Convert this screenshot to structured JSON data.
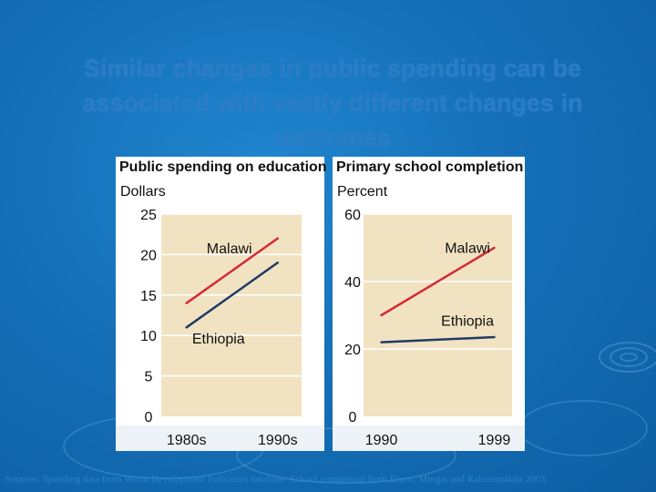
{
  "slide": {
    "title": "Similar changes in public spending can be associated with vastly different changes in outcomes",
    "source": "Sources: Spending data from World Development Indicators database. School completion from Bruns, Mingat and Rakotomalala 2003"
  },
  "colors": {
    "malawi": "#d42a35",
    "ethiopia": "#1f3a66",
    "plot_bg": "#f1e3c2",
    "grid": "#ffffff"
  },
  "chart_data": [
    {
      "type": "line",
      "title": "Public spending on education",
      "ylabel": "Dollars",
      "categories": [
        "1980s",
        "1990s"
      ],
      "ylim": [
        0,
        25
      ],
      "yticks": [
        "0",
        "5",
        "10",
        "15",
        "20",
        "25"
      ],
      "grid": true,
      "series": [
        {
          "name": "Malawi",
          "values": [
            14,
            22
          ]
        },
        {
          "name": "Ethiopia",
          "values": [
            11,
            19
          ]
        }
      ]
    },
    {
      "type": "line",
      "title": "Primary school completion",
      "ylabel": "Percent",
      "categories": [
        "1990",
        "1999"
      ],
      "ylim": [
        0,
        60
      ],
      "yticks": [
        "0",
        "20",
        "40",
        "60"
      ],
      "grid": true,
      "series": [
        {
          "name": "Malawi",
          "values": [
            30,
            50
          ]
        },
        {
          "name": "Ethiopia",
          "values": [
            22,
            23.5
          ]
        }
      ]
    }
  ]
}
